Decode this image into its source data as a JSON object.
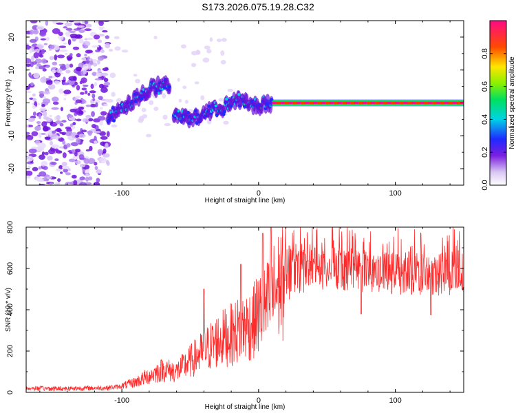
{
  "title": "S173.2026.075.19.28.C32",
  "colors": {
    "snr_line": "#ff2a2a",
    "axis": "#000000",
    "background": "#ffffff"
  },
  "chart_data": [
    {
      "type": "heatmap",
      "name": "spectrogram",
      "title": "S173.2026.075.19.28.C32",
      "xlabel": "Height of straight line (km)",
      "ylabel": "Frequency (Hz)",
      "xlim": [
        -170,
        150
      ],
      "ylim": [
        -25,
        25
      ],
      "xticks": [
        -100,
        0,
        100
      ],
      "xtick_labels": [
        "-100",
        "0",
        "100"
      ],
      "yticks": [
        -20,
        -10,
        0,
        10,
        20
      ],
      "ytick_labels": [
        "-20",
        "-10",
        "0",
        "10",
        "20"
      ],
      "description_segments": [
        {
          "name": "noise",
          "x_range": [
            -170,
            -110
          ],
          "note": "scattered purple blobs"
        },
        {
          "name": "wandering-trace-1",
          "points": [
            [
              -110,
              -4
            ],
            [
              -100,
              -2
            ],
            [
              -90,
              1
            ],
            [
              -80,
              4
            ],
            [
              -70,
              6
            ],
            [
              -65,
              5
            ]
          ]
        },
        {
          "name": "wandering-trace-2",
          "points": [
            [
              -62,
              -4
            ],
            [
              -50,
              -5
            ],
            [
              -40,
              -3
            ],
            [
              -30,
              -2
            ],
            [
              -20,
              0
            ],
            [
              -15,
              1
            ],
            [
              -8,
              0
            ],
            [
              0,
              -1
            ],
            [
              5,
              0
            ],
            [
              10,
              0
            ]
          ]
        },
        {
          "name": "steady-line",
          "x_range": [
            10,
            150
          ],
          "frequency": 0
        }
      ]
    },
    {
      "type": "colorbar",
      "name": "amplitude-colorbar",
      "label": "Normalized spectral amplitude",
      "range": [
        0.0,
        1.0
      ],
      "ticks": [
        0.0,
        0.2,
        0.4,
        0.6,
        0.8
      ],
      "tick_labels": [
        "0.0",
        "0.2",
        "0.4",
        "0.6",
        "0.8"
      ]
    },
    {
      "type": "line",
      "name": "snr-plot",
      "xlabel": "Height of straight line (km)",
      "ylabel": "SNR (10 * v/v)",
      "xlim": [
        -170,
        150
      ],
      "ylim": [
        0,
        800
      ],
      "xticks": [
        -100,
        0,
        100
      ],
      "xtick_labels": [
        "-100",
        "0",
        "100"
      ],
      "yticks": [
        0,
        200,
        400,
        600,
        800
      ],
      "ytick_labels": [
        "0",
        "200",
        "400",
        "600",
        "800"
      ],
      "series": [
        {
          "name": "SNR",
          "x": [
            -170,
            -150,
            -130,
            -110,
            -100,
            -90,
            -80,
            -70,
            -60,
            -50,
            -40,
            -30,
            -20,
            -15,
            -10,
            -5,
            0,
            5,
            10,
            15,
            20,
            30,
            40,
            50,
            60,
            70,
            80,
            90,
            100,
            110,
            120,
            130,
            140,
            150
          ],
          "values": [
            20,
            18,
            20,
            22,
            30,
            50,
            80,
            110,
            100,
            150,
            200,
            250,
            280,
            300,
            320,
            330,
            380,
            400,
            460,
            520,
            560,
            600,
            610,
            620,
            610,
            605,
            600,
            600,
            595,
            590,
            590,
            585,
            590,
            595
          ],
          "spikes": [
            [
              -40,
              500
            ],
            [
              -13,
              620
            ],
            [
              3,
              770
            ],
            [
              9,
              800
            ],
            [
              75,
              380
            ],
            [
              126,
              375
            ]
          ]
        }
      ]
    }
  ]
}
